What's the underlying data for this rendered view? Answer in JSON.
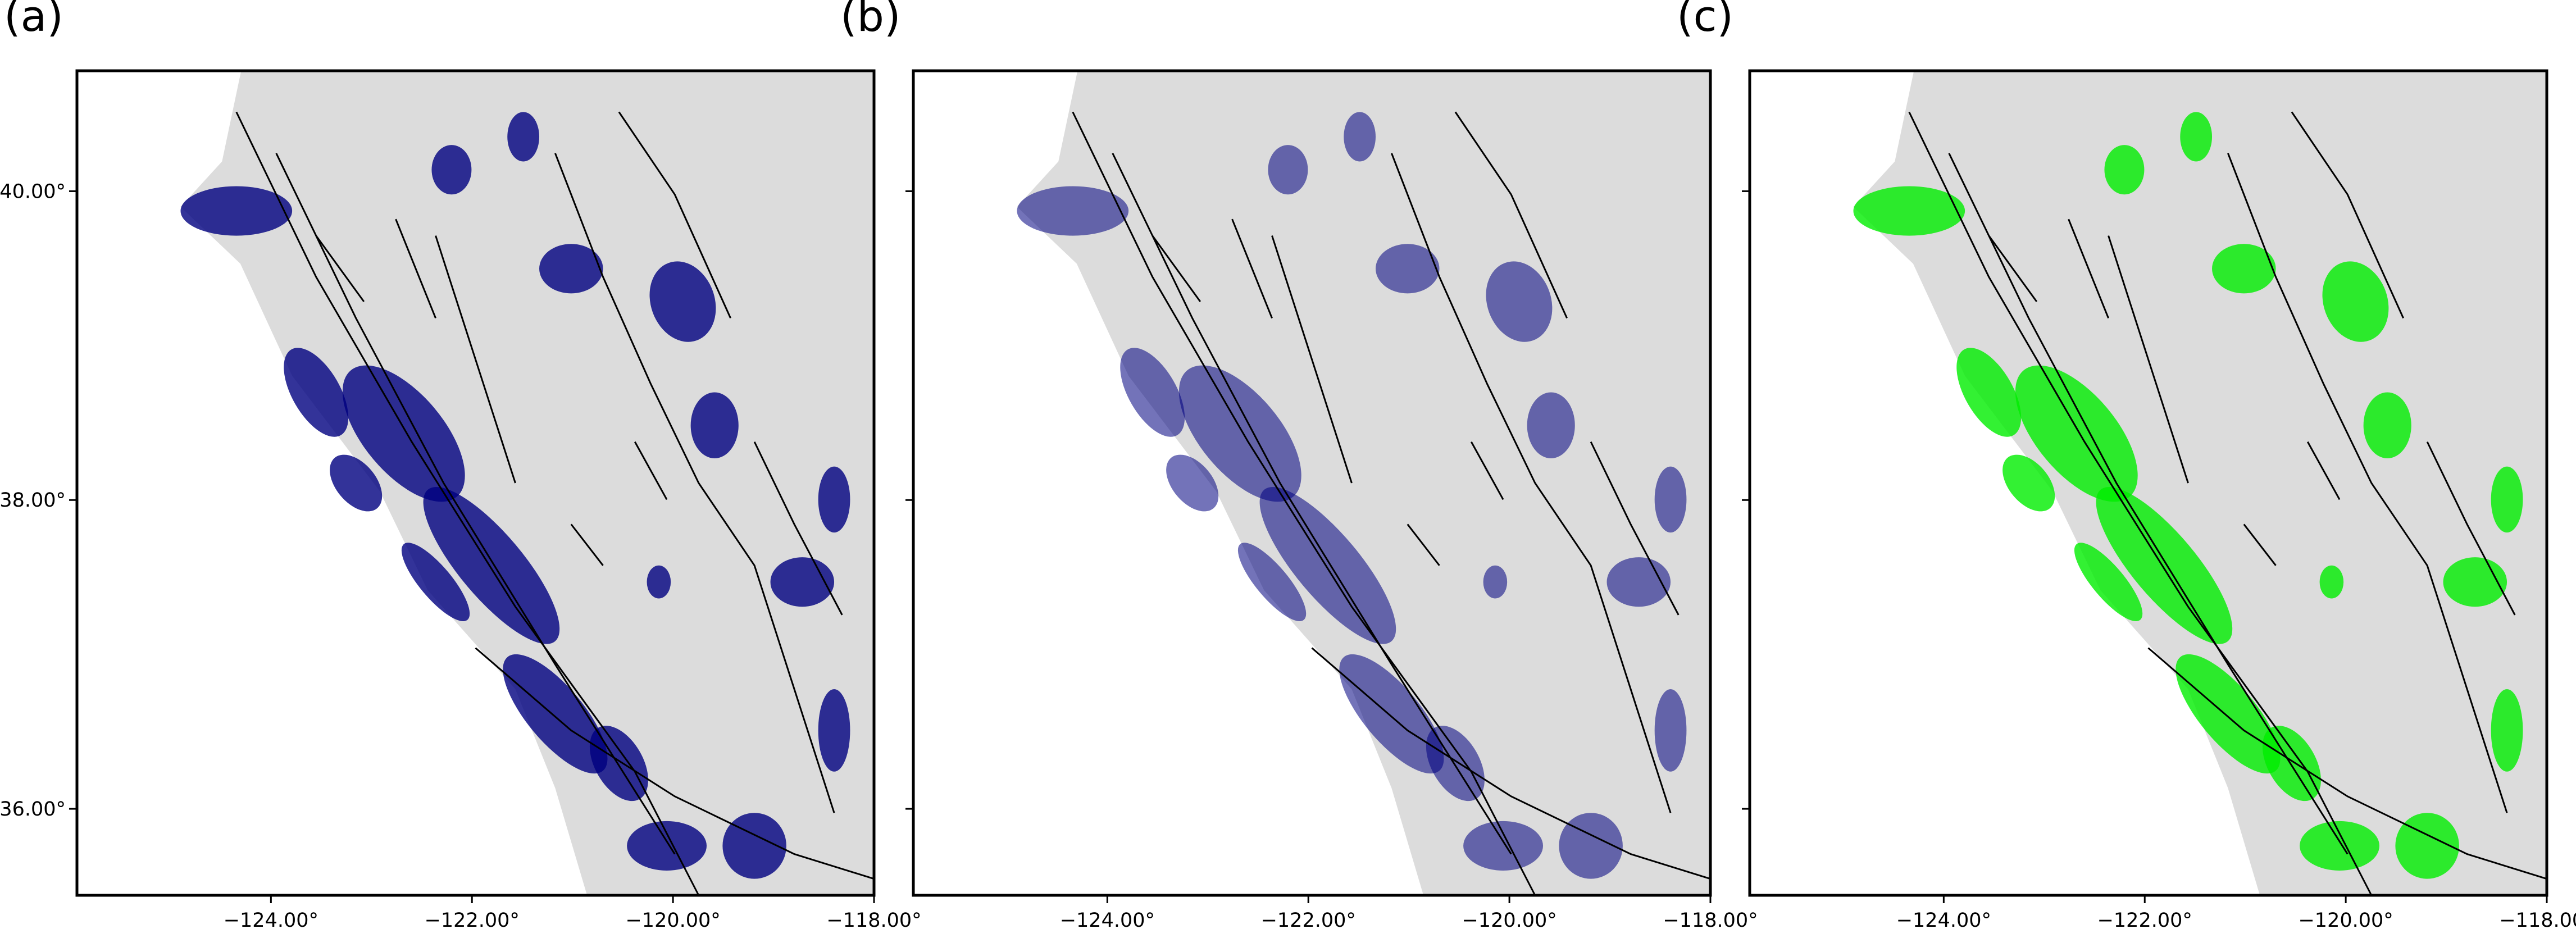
{
  "map": {
    "xlim": [
      -125.93,
      -118
    ],
    "ylim": [
      35.44,
      40.78
    ],
    "xticks": [
      {
        "value": -124,
        "label": "−124.00°"
      },
      {
        "value": -122,
        "label": "−122.00°"
      },
      {
        "value": -120,
        "label": "−120.00°"
      },
      {
        "value": -118,
        "label": "−118.00°"
      }
    ],
    "yticks": [
      {
        "value": 36,
        "label": "36.00°"
      },
      {
        "value": 38,
        "label": "38.00°"
      },
      {
        "value": 40,
        "label": "40.00°"
      }
    ]
  },
  "panels": [
    {
      "label": "(a)",
      "marker_color": "#000080",
      "show_y_labels": true
    },
    {
      "label": "(b)",
      "marker_color": "#000080",
      "show_y_labels": false
    },
    {
      "label": "(c)",
      "marker_color": "#00ee00",
      "show_y_labels": false
    }
  ]
}
